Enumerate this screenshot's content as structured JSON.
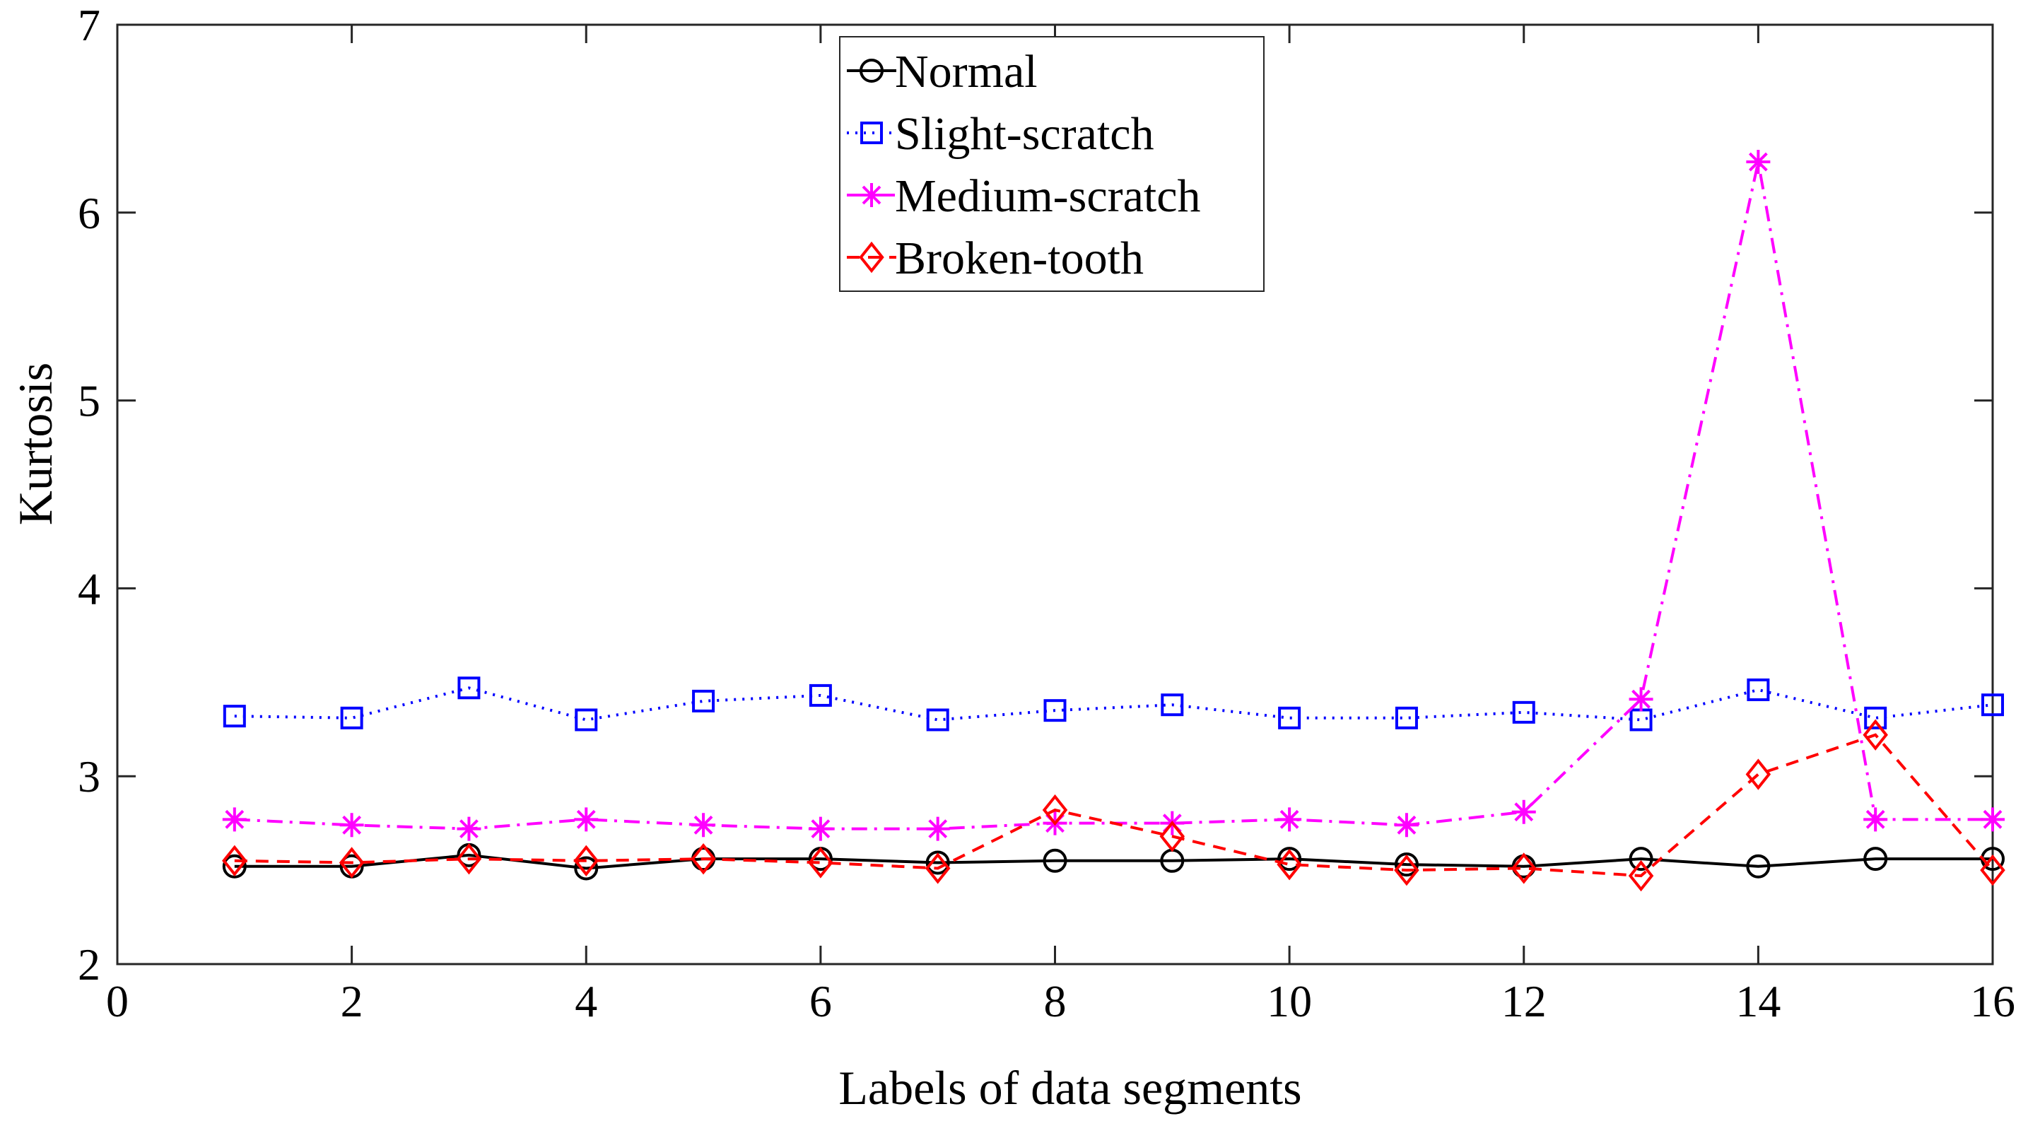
{
  "chart_data": {
    "type": "line",
    "title": "",
    "xlabel": "Labels of data segments",
    "ylabel": "Kurtosis",
    "xlim": [
      0,
      16
    ],
    "ylim": [
      2,
      7
    ],
    "xticks": [
      0,
      2,
      4,
      6,
      8,
      10,
      12,
      14,
      16
    ],
    "yticks": [
      2,
      3,
      4,
      5,
      6,
      7
    ],
    "grid": false,
    "legend_position": "top-center",
    "x": [
      1,
      2,
      3,
      4,
      5,
      6,
      7,
      8,
      9,
      10,
      11,
      12,
      13,
      14,
      15,
      16
    ],
    "series": [
      {
        "name": "Normal",
        "color": "#000000",
        "line_style": "solid",
        "marker": "circle",
        "values": [
          2.52,
          2.52,
          2.58,
          2.51,
          2.56,
          2.56,
          2.54,
          2.55,
          2.55,
          2.56,
          2.53,
          2.52,
          2.56,
          2.52,
          2.56,
          2.56
        ]
      },
      {
        "name": "Slight-scratch",
        "color": "#0000ff",
        "line_style": "dotted",
        "marker": "square",
        "values": [
          3.32,
          3.31,
          3.47,
          3.3,
          3.4,
          3.43,
          3.3,
          3.35,
          3.38,
          3.31,
          3.31,
          3.34,
          3.3,
          3.46,
          3.31,
          3.38
        ]
      },
      {
        "name": "Medium-scratch",
        "color": "#ff00ff",
        "line_style": "dashdot",
        "marker": "star",
        "values": [
          2.77,
          2.74,
          2.72,
          2.77,
          2.74,
          2.72,
          2.72,
          2.75,
          2.75,
          2.77,
          2.74,
          2.81,
          3.41,
          6.27,
          2.77,
          2.77
        ]
      },
      {
        "name": "Broken-tooth",
        "color": "#ff0000",
        "line_style": "dashed",
        "marker": "diamond",
        "values": [
          2.55,
          2.54,
          2.56,
          2.55,
          2.56,
          2.54,
          2.51,
          2.82,
          2.68,
          2.53,
          2.5,
          2.51,
          2.47,
          3.01,
          3.22,
          2.5
        ]
      }
    ]
  }
}
